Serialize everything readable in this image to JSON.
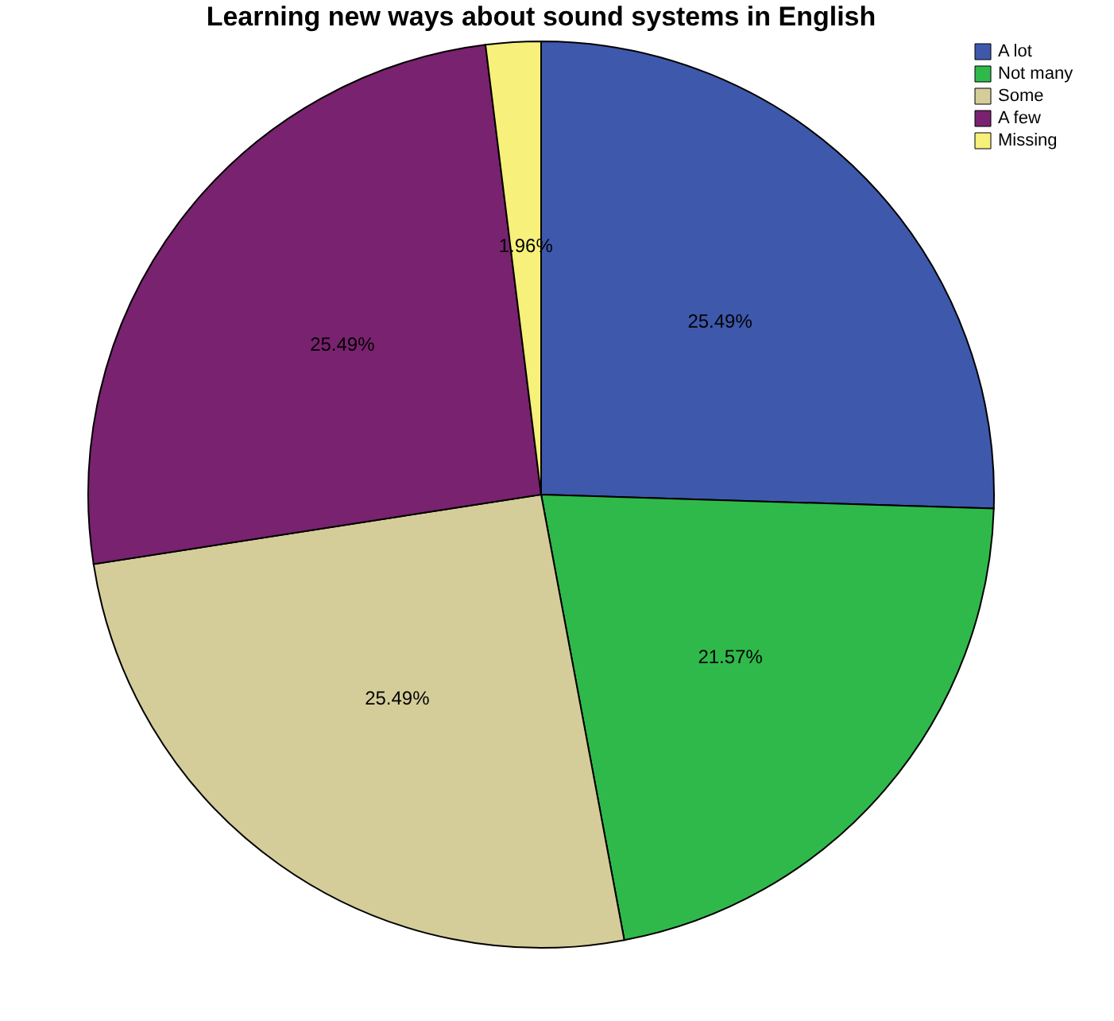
{
  "chart_data": {
    "type": "pie",
    "title": "Learning new ways about sound systems in English",
    "categories": [
      "A lot",
      "Not many",
      "Some",
      "A few",
      "Missing"
    ],
    "values": [
      25.49,
      21.57,
      25.49,
      25.49,
      1.96
    ],
    "colors": [
      "#3e58ac",
      "#30b94b",
      "#d5cd99",
      "#79226f",
      "#f7f07a"
    ],
    "value_labels": [
      "25.49%",
      "21.57%",
      "25.49%",
      "25.49%",
      "1.96%"
    ],
    "legend": "top right"
  }
}
